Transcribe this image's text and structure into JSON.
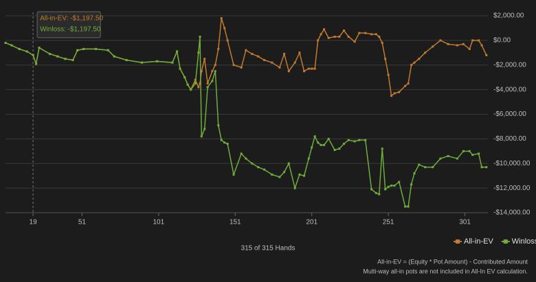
{
  "chart_data": {
    "type": "line",
    "x": [
      1,
      5,
      10,
      15,
      19,
      21,
      23,
      30,
      35,
      40,
      45,
      48,
      52,
      60,
      68,
      72,
      80,
      90,
      100,
      110,
      113,
      115,
      118,
      120,
      122,
      125,
      127,
      128,
      129,
      131,
      133,
      136,
      138,
      140,
      142,
      144,
      146,
      150,
      155,
      158,
      162,
      166,
      170,
      175,
      180,
      183,
      186,
      190,
      193,
      196,
      199,
      201,
      203,
      205,
      207,
      209,
      212,
      216,
      219,
      222,
      225,
      229,
      232,
      236,
      240,
      243,
      245,
      247,
      249,
      251,
      253,
      255,
      258,
      262,
      264,
      266,
      268,
      271,
      275,
      280,
      285,
      290,
      296,
      300,
      304,
      306,
      310,
      312,
      315
    ],
    "series": [
      {
        "name": "All-in-EV",
        "color": "#c27b2e",
        "values": [
          -200,
          -400,
          -700,
          -900,
          -1197.5,
          -1900,
          -600,
          -1100,
          -1300,
          -1500,
          -1600,
          -800,
          -700,
          -700,
          -800,
          -1300,
          -1600,
          -1800,
          -1700,
          -1800,
          -900,
          -2300,
          -3000,
          -3600,
          -4000,
          -3200,
          -3800,
          -3500,
          -2500,
          -1500,
          -3500,
          -2500,
          -2000,
          -700,
          1800,
          1000,
          0,
          -2000,
          -2200,
          -800,
          -1100,
          -1300,
          -1600,
          -1800,
          -2200,
          -1100,
          -2500,
          -1800,
          -1000,
          -2500,
          -2300,
          -2300,
          -2300,
          0,
          500,
          900,
          200,
          300,
          300,
          800,
          300,
          -100,
          600,
          600,
          500,
          500,
          300,
          -200,
          -1500,
          -2800,
          -4500,
          -4300,
          -4200,
          -3700,
          -3500,
          -2000,
          -1800,
          -1500,
          -1000,
          -500,
          0,
          -300,
          -400,
          -300,
          -700,
          0,
          0,
          -400,
          -1200
        ]
      },
      {
        "name": "Winloss",
        "color": "#6fae3a",
        "values": [
          -200,
          -400,
          -700,
          -900,
          -1197.5,
          -1900,
          -600,
          -1100,
          -1300,
          -1500,
          -1600,
          -800,
          -700,
          -700,
          -800,
          -1300,
          -1600,
          -1800,
          -1700,
          -1800,
          -900,
          -2300,
          -3000,
          -3600,
          -4000,
          -3500,
          -1000,
          300,
          -7800,
          -7200,
          -3800,
          -3300,
          -2500,
          -6900,
          -8100,
          -8300,
          -8400,
          -10900,
          -9200,
          -9600,
          -10000,
          -10300,
          -10500,
          -10900,
          -11100,
          -10700,
          -10000,
          -12000,
          -10900,
          -11000,
          -9600,
          -8700,
          -7800,
          -8300,
          -8500,
          -8500,
          -8000,
          -8900,
          -8800,
          -8400,
          -8100,
          -8200,
          -8100,
          -8100,
          -12100,
          -12400,
          -12500,
          -8800,
          -12100,
          -11900,
          -11800,
          -11800,
          -11500,
          -13500,
          -13500,
          -11700,
          -10800,
          -10100,
          -10300,
          -10300,
          -9600,
          -9400,
          -9600,
          -9000,
          -9000,
          -9300,
          -9200,
          -10300,
          -10300
        ]
      }
    ],
    "xlim": [
      1,
      316
    ],
    "xticks": [
      19,
      51,
      101,
      151,
      201,
      251,
      301
    ],
    "ylim": [
      -14000,
      2000
    ],
    "yticks": [
      {
        "value": 2000,
        "label": "$2,000.00"
      },
      {
        "value": 0,
        "label": "$0.00"
      },
      {
        "value": -2000,
        "label": "-$2,000.00"
      },
      {
        "value": -4000,
        "label": "-$4,000.00"
      },
      {
        "value": -6000,
        "label": "-$6,000.00"
      },
      {
        "value": -8000,
        "label": "-$8,000.00"
      },
      {
        "value": -10000,
        "label": "-$10,000.00"
      },
      {
        "value": -12000,
        "label": "-$12,000.00"
      },
      {
        "value": -14000,
        "label": "-$14,000.00"
      }
    ],
    "grid": true,
    "crosshair_x": 19,
    "tooltip": [
      "All-in-EV: -$1,197.50",
      "Winloss: -$1,197.50"
    ],
    "x_label": "315 of 315 Hands",
    "footnotes": [
      "All-in-EV = (Equity * Pot Amount) - Contributed Amount",
      "Multi-way all-in pots are not included in All-In EV calculation."
    ],
    "legend": "bottom-right"
  }
}
